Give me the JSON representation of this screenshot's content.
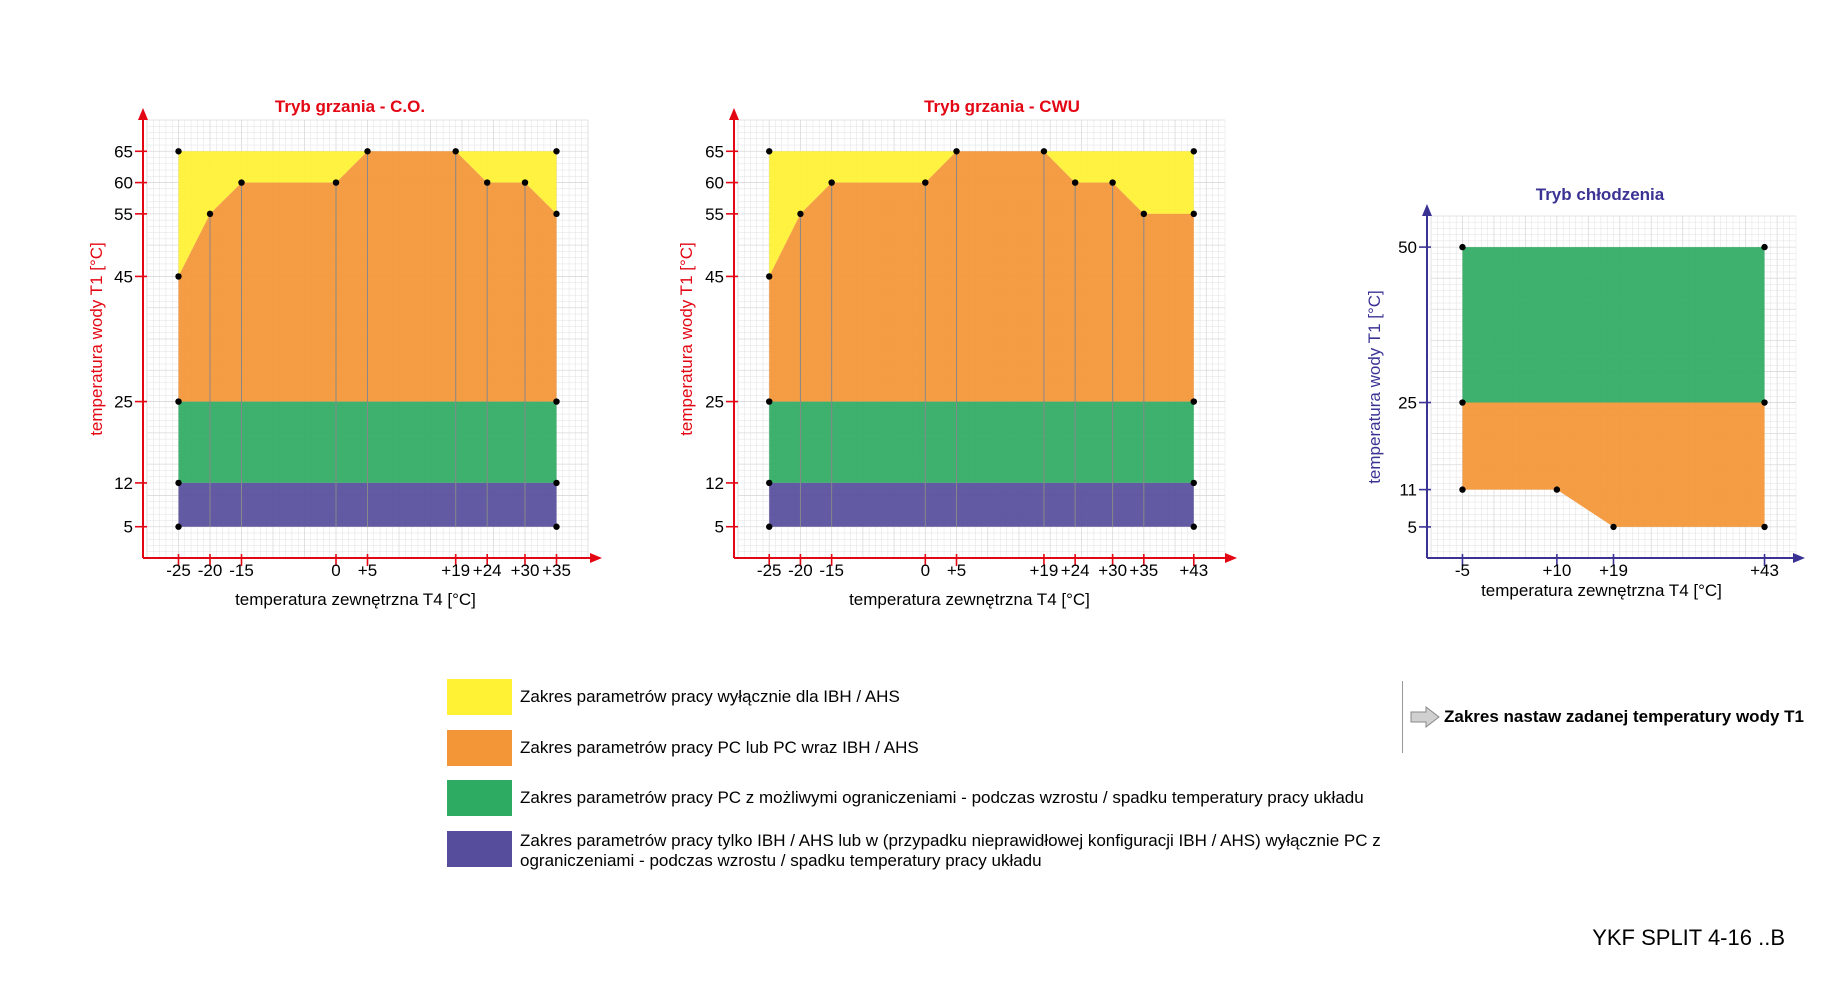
{
  "colors": {
    "yellow": "#FFF133",
    "orange": "#F39637",
    "green": "#2EAB62",
    "purple": "#564D9C",
    "heating_axis": "#E30613",
    "cooling_axis": "#3B3394",
    "grid": "#dadada"
  },
  "chart_data": [
    {
      "type": "area",
      "title": "Tryb grzania - C.O.",
      "xlabel": "temperatura zewnętrzna T4 [°C]",
      "ylabel": "temperatura wody T1 [°C]",
      "x_ticks": [
        -25,
        -20,
        -15,
        0,
        5,
        19,
        24,
        30,
        35
      ],
      "x_tick_labels": [
        "-25",
        "-20",
        "-15",
        "0",
        "+5",
        "+19",
        "+24",
        "+30",
        "+35"
      ],
      "y_ticks": [
        5,
        12,
        25,
        45,
        55,
        60,
        65
      ],
      "y_tick_labels": [
        "5",
        "12",
        "25",
        "45",
        "55",
        "60",
        "65"
      ],
      "xlim": [
        -30,
        40
      ],
      "ylim": [
        0,
        70
      ],
      "regions": [
        {
          "color": "yellow",
          "points": [
            [
              -25,
              65
            ],
            [
              35,
              65
            ],
            [
              35,
              55
            ],
            [
              30,
              60
            ],
            [
              24,
              60
            ],
            [
              19,
              65
            ],
            [
              5,
              65
            ],
            [
              0,
              60
            ],
            [
              -15,
              60
            ],
            [
              -20,
              55
            ],
            [
              -25,
              45
            ]
          ]
        },
        {
          "color": "orange",
          "points": [
            [
              -25,
              45
            ],
            [
              -20,
              55
            ],
            [
              -15,
              60
            ],
            [
              0,
              60
            ],
            [
              5,
              65
            ],
            [
              19,
              65
            ],
            [
              24,
              60
            ],
            [
              30,
              60
            ],
            [
              35,
              55
            ],
            [
              35,
              25
            ],
            [
              -25,
              25
            ]
          ]
        },
        {
          "color": "green",
          "points": [
            [
              -25,
              25
            ],
            [
              35,
              25
            ],
            [
              35,
              12
            ],
            [
              -25,
              12
            ]
          ]
        },
        {
          "color": "purple",
          "points": [
            [
              -25,
              12
            ],
            [
              35,
              12
            ],
            [
              35,
              5
            ],
            [
              -25,
              5
            ]
          ]
        }
      ],
      "guide_lines": [
        [
          -20,
          55
        ],
        [
          -15,
          60
        ],
        [
          0,
          60
        ],
        [
          5,
          65
        ],
        [
          19,
          65
        ],
        [
          24,
          60
        ],
        [
          30,
          60
        ]
      ],
      "points": [
        [
          -25,
          65
        ],
        [
          35,
          65
        ],
        [
          -25,
          45
        ],
        [
          -20,
          55
        ],
        [
          -15,
          60
        ],
        [
          0,
          60
        ],
        [
          5,
          65
        ],
        [
          19,
          65
        ],
        [
          24,
          60
        ],
        [
          30,
          60
        ],
        [
          35,
          55
        ],
        [
          -25,
          25
        ],
        [
          35,
          25
        ],
        [
          -25,
          12
        ],
        [
          35,
          12
        ],
        [
          -25,
          5
        ],
        [
          35,
          5
        ]
      ],
      "axis_color": "heating_axis",
      "title_color": "heating_axis"
    },
    {
      "type": "area",
      "title": "Tryb grzania - CWU",
      "xlabel": "temperatura zewnętrzna T4 [°C]",
      "ylabel": "temperatura wody T1 [°C]",
      "x_ticks": [
        -25,
        -20,
        -15,
        0,
        5,
        19,
        24,
        30,
        35,
        43
      ],
      "x_tick_labels": [
        "-25",
        "-20",
        "-15",
        "0",
        "+5",
        "+19",
        "+24",
        "+30",
        "+35",
        "+43"
      ],
      "y_ticks": [
        5,
        12,
        25,
        45,
        55,
        60,
        65
      ],
      "y_tick_labels": [
        "5",
        "12",
        "25",
        "45",
        "55",
        "60",
        "65"
      ],
      "xlim": [
        -30,
        48
      ],
      "ylim": [
        0,
        70
      ],
      "regions": [
        {
          "color": "yellow",
          "points": [
            [
              -25,
              65
            ],
            [
              43,
              65
            ],
            [
              43,
              55
            ],
            [
              35,
              55
            ],
            [
              30,
              60
            ],
            [
              24,
              60
            ],
            [
              19,
              65
            ],
            [
              5,
              65
            ],
            [
              0,
              60
            ],
            [
              -15,
              60
            ],
            [
              -20,
              55
            ],
            [
              -25,
              45
            ]
          ]
        },
        {
          "color": "orange",
          "points": [
            [
              -25,
              45
            ],
            [
              -20,
              55
            ],
            [
              -15,
              60
            ],
            [
              0,
              60
            ],
            [
              5,
              65
            ],
            [
              19,
              65
            ],
            [
              24,
              60
            ],
            [
              30,
              60
            ],
            [
              35,
              55
            ],
            [
              43,
              55
            ],
            [
              43,
              25
            ],
            [
              -25,
              25
            ]
          ]
        },
        {
          "color": "green",
          "points": [
            [
              -25,
              25
            ],
            [
              43,
              25
            ],
            [
              43,
              12
            ],
            [
              -25,
              12
            ]
          ]
        },
        {
          "color": "purple",
          "points": [
            [
              -25,
              12
            ],
            [
              43,
              12
            ],
            [
              43,
              5
            ],
            [
              -25,
              5
            ]
          ]
        }
      ],
      "guide_lines": [
        [
          -20,
          55
        ],
        [
          -15,
          60
        ],
        [
          0,
          60
        ],
        [
          5,
          65
        ],
        [
          19,
          65
        ],
        [
          24,
          60
        ],
        [
          30,
          60
        ],
        [
          35,
          55
        ]
      ],
      "points": [
        [
          -25,
          65
        ],
        [
          43,
          65
        ],
        [
          -25,
          45
        ],
        [
          -20,
          55
        ],
        [
          -15,
          60
        ],
        [
          0,
          60
        ],
        [
          5,
          65
        ],
        [
          19,
          65
        ],
        [
          24,
          60
        ],
        [
          30,
          60
        ],
        [
          35,
          55
        ],
        [
          43,
          55
        ],
        [
          -25,
          25
        ],
        [
          43,
          25
        ],
        [
          -25,
          12
        ],
        [
          43,
          12
        ],
        [
          -25,
          5
        ],
        [
          43,
          5
        ]
      ],
      "axis_color": "heating_axis",
      "title_color": "heating_axis"
    },
    {
      "type": "area",
      "title": "Tryb chłodzenia",
      "xlabel": "temperatura zewnętrzna T4 [°C]",
      "ylabel": "temperatura wody T1 [°C]",
      "x_ticks": [
        -5,
        10,
        19,
        43
      ],
      "x_tick_labels": [
        "-5",
        "+10",
        "+19",
        "+43"
      ],
      "y_ticks": [
        5,
        11,
        25,
        50
      ],
      "y_tick_labels": [
        "5",
        "11",
        "25",
        "50"
      ],
      "xlim": [
        -10,
        48
      ],
      "ylim": [
        0,
        55
      ],
      "regions": [
        {
          "color": "green",
          "points": [
            [
              -5,
              50
            ],
            [
              43,
              50
            ],
            [
              43,
              25
            ],
            [
              -5,
              25
            ]
          ]
        },
        {
          "color": "orange",
          "points": [
            [
              -5,
              25
            ],
            [
              43,
              25
            ],
            [
              43,
              5
            ],
            [
              19,
              5
            ],
            [
              10,
              11
            ],
            [
              -5,
              11
            ]
          ]
        }
      ],
      "guide_lines": [],
      "points": [
        [
          -5,
          50
        ],
        [
          43,
          50
        ],
        [
          -5,
          25
        ],
        [
          43,
          25
        ],
        [
          -5,
          11
        ],
        [
          10,
          11
        ],
        [
          19,
          5
        ],
        [
          43,
          5
        ]
      ],
      "axis_color": "cooling_axis",
      "title_color": "cooling_axis"
    }
  ],
  "legend": {
    "items": [
      {
        "color": "yellow",
        "text": "Zakres parametrów pracy wyłącznie dla IBH / AHS"
      },
      {
        "color": "orange",
        "text": "Zakres parametrów pracy PC lub  PC wraz IBH / AHS"
      },
      {
        "color": "green",
        "text": "Zakres parametrów pracy PC z możliwymi ograniczeniami - podczas wzrostu / spadku temperatury pracy układu"
      },
      {
        "color": "purple",
        "text": "Zakres parametrów pracy tylko IBH / AHS lub w (przypadku nieprawidłowej konfiguracji IBH / AHS) wyłącznie PC z ograniczeniami  - podczas wzrostu / spadku temperatury pracy układu"
      }
    ],
    "range_note": "Zakres nastaw zadanej temperatury wody T1"
  },
  "model_label": "YKF SPLIT 4-16 ..B"
}
